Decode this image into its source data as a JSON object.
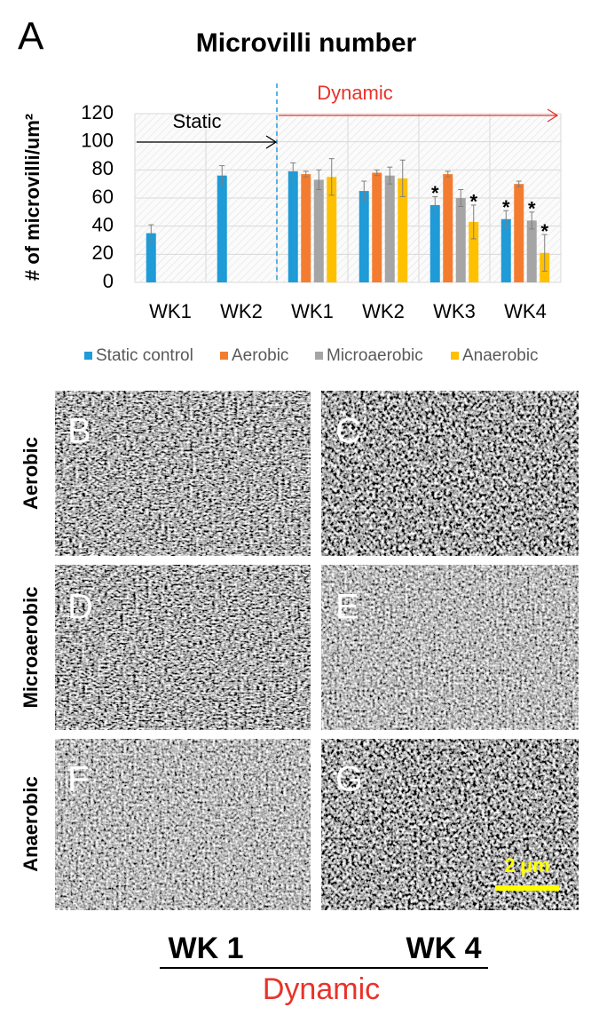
{
  "panel_label": "A",
  "chart_data": {
    "type": "bar",
    "title": "Microvilli number",
    "y_label": "# of microvilli/um²",
    "categories": [
      "WK1",
      "WK2",
      "WK1",
      "WK2",
      "WK3",
      "WK4"
    ],
    "series": [
      {
        "name": "Static control",
        "color": "#1f9bd7",
        "values": [
          35,
          76,
          79,
          65,
          55,
          45
        ],
        "errors": [
          6,
          7,
          6,
          7,
          6,
          6
        ],
        "significance": [
          null,
          null,
          null,
          null,
          "*",
          "*"
        ]
      },
      {
        "name": "Aerobic",
        "color": "#f47c30",
        "values": [
          null,
          null,
          77,
          78,
          77,
          70
        ],
        "errors": [
          null,
          null,
          2,
          2,
          2,
          2
        ],
        "significance": [
          null,
          null,
          null,
          null,
          null,
          null
        ]
      },
      {
        "name": "Microaerobic",
        "color": "#a5a5a5",
        "values": [
          null,
          null,
          73,
          76,
          60,
          44
        ],
        "errors": [
          null,
          null,
          7,
          6,
          6,
          6
        ],
        "significance": [
          null,
          null,
          null,
          null,
          null,
          "*"
        ]
      },
      {
        "name": "Anaerobic",
        "color": "#ffc000",
        "values": [
          null,
          null,
          75,
          74,
          43,
          21
        ],
        "errors": [
          null,
          null,
          13,
          13,
          12,
          13
        ],
        "significance": [
          null,
          null,
          null,
          null,
          "*",
          "*"
        ]
      }
    ],
    "ylim": [
      0,
      120
    ],
    "yticks": [
      0,
      20,
      40,
      60,
      80,
      100,
      120
    ],
    "grid": true,
    "annotations": [
      "Static",
      "Dynamic"
    ]
  },
  "images": {
    "panels": [
      "B",
      "C",
      "D",
      "E",
      "F",
      "G"
    ],
    "row_labels": [
      "Aerobic",
      "Microaerobic",
      "Anaerobic"
    ],
    "column_labels": [
      "WK 1",
      "WK 4"
    ],
    "column_group": "Dynamic",
    "scale_bar": "2 μm"
  }
}
